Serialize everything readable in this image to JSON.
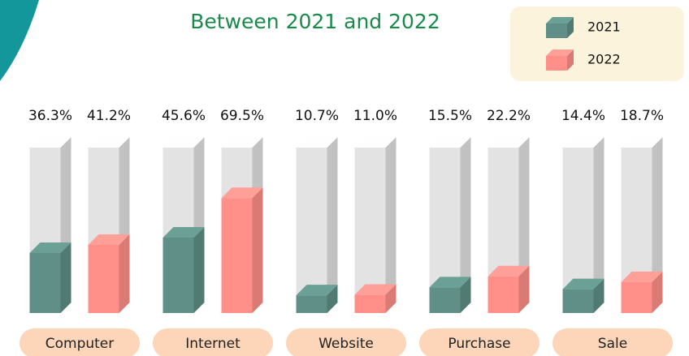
{
  "chart_data": {
    "type": "bar3d",
    "title": "Between 2021 and 2022",
    "categories": [
      "Computer",
      "Internet",
      "Website",
      "Purchase",
      "Sale"
    ],
    "series": [
      {
        "name": "2021",
        "color": "#5f8f86",
        "values": [
          36.3,
          45.6,
          10.7,
          15.5,
          14.4
        ],
        "value_labels": [
          "36.3%",
          "45.6%",
          "10.7%",
          "15.5%",
          "14.4%"
        ]
      },
      {
        "name": "2022",
        "color": "#ff8f88",
        "values": [
          41.2,
          69.5,
          11.0,
          22.2,
          18.7
        ],
        "value_labels": [
          "41.2%",
          "69.5%",
          "11.0%",
          "22.2%",
          "18.7%"
        ]
      }
    ],
    "ylim": [
      0,
      100
    ],
    "legend": "top-right"
  }
}
